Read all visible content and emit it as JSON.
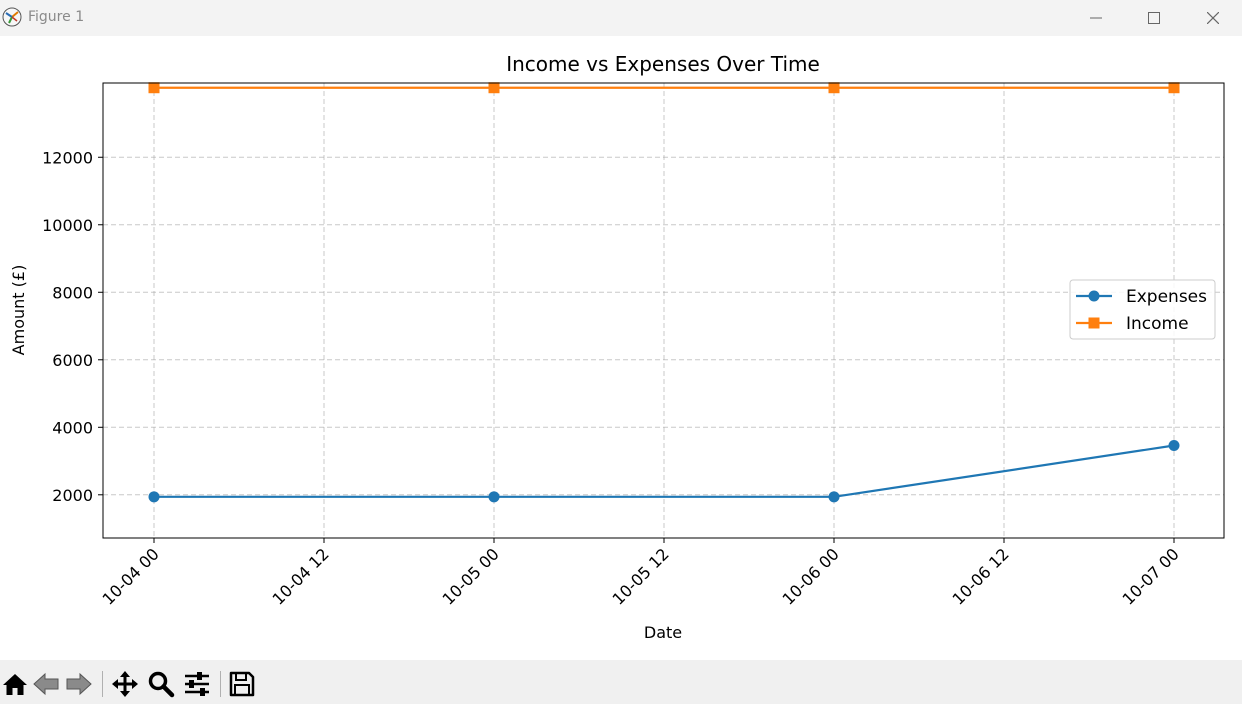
{
  "window": {
    "title": "Figure 1"
  },
  "toolbar": {
    "buttons": [
      "home-icon",
      "back-icon",
      "forward-icon",
      "pan-icon",
      "zoom-icon",
      "configure-subplots-icon",
      "save-icon"
    ]
  },
  "chart_data": {
    "type": "line",
    "title": "Income vs Expenses Over Time",
    "xlabel": "Date",
    "ylabel": "Amount (£)",
    "x": [
      "2024-10-04 00:00",
      "2024-10-05 00:00",
      "2024-10-06 00:00",
      "2024-10-07 00:00"
    ],
    "x_tick_labels": [
      "10-04 00",
      "10-04 12",
      "10-05 00",
      "10-05 12",
      "10-06 00",
      "10-06 12",
      "10-07 00"
    ],
    "y_ticks": [
      2000,
      4000,
      6000,
      8000,
      10000,
      12000
    ],
    "ylim": [
      720,
      14200
    ],
    "grid": true,
    "legend_position": "center-right",
    "series": [
      {
        "name": "Expenses",
        "color": "#1f77b4",
        "marker": "circle",
        "values": [
          1940,
          1940,
          1940,
          3460
        ]
      },
      {
        "name": "Income",
        "color": "#ff7f0e",
        "marker": "square",
        "values": [
          14060,
          14060,
          14060,
          14060
        ]
      }
    ]
  }
}
